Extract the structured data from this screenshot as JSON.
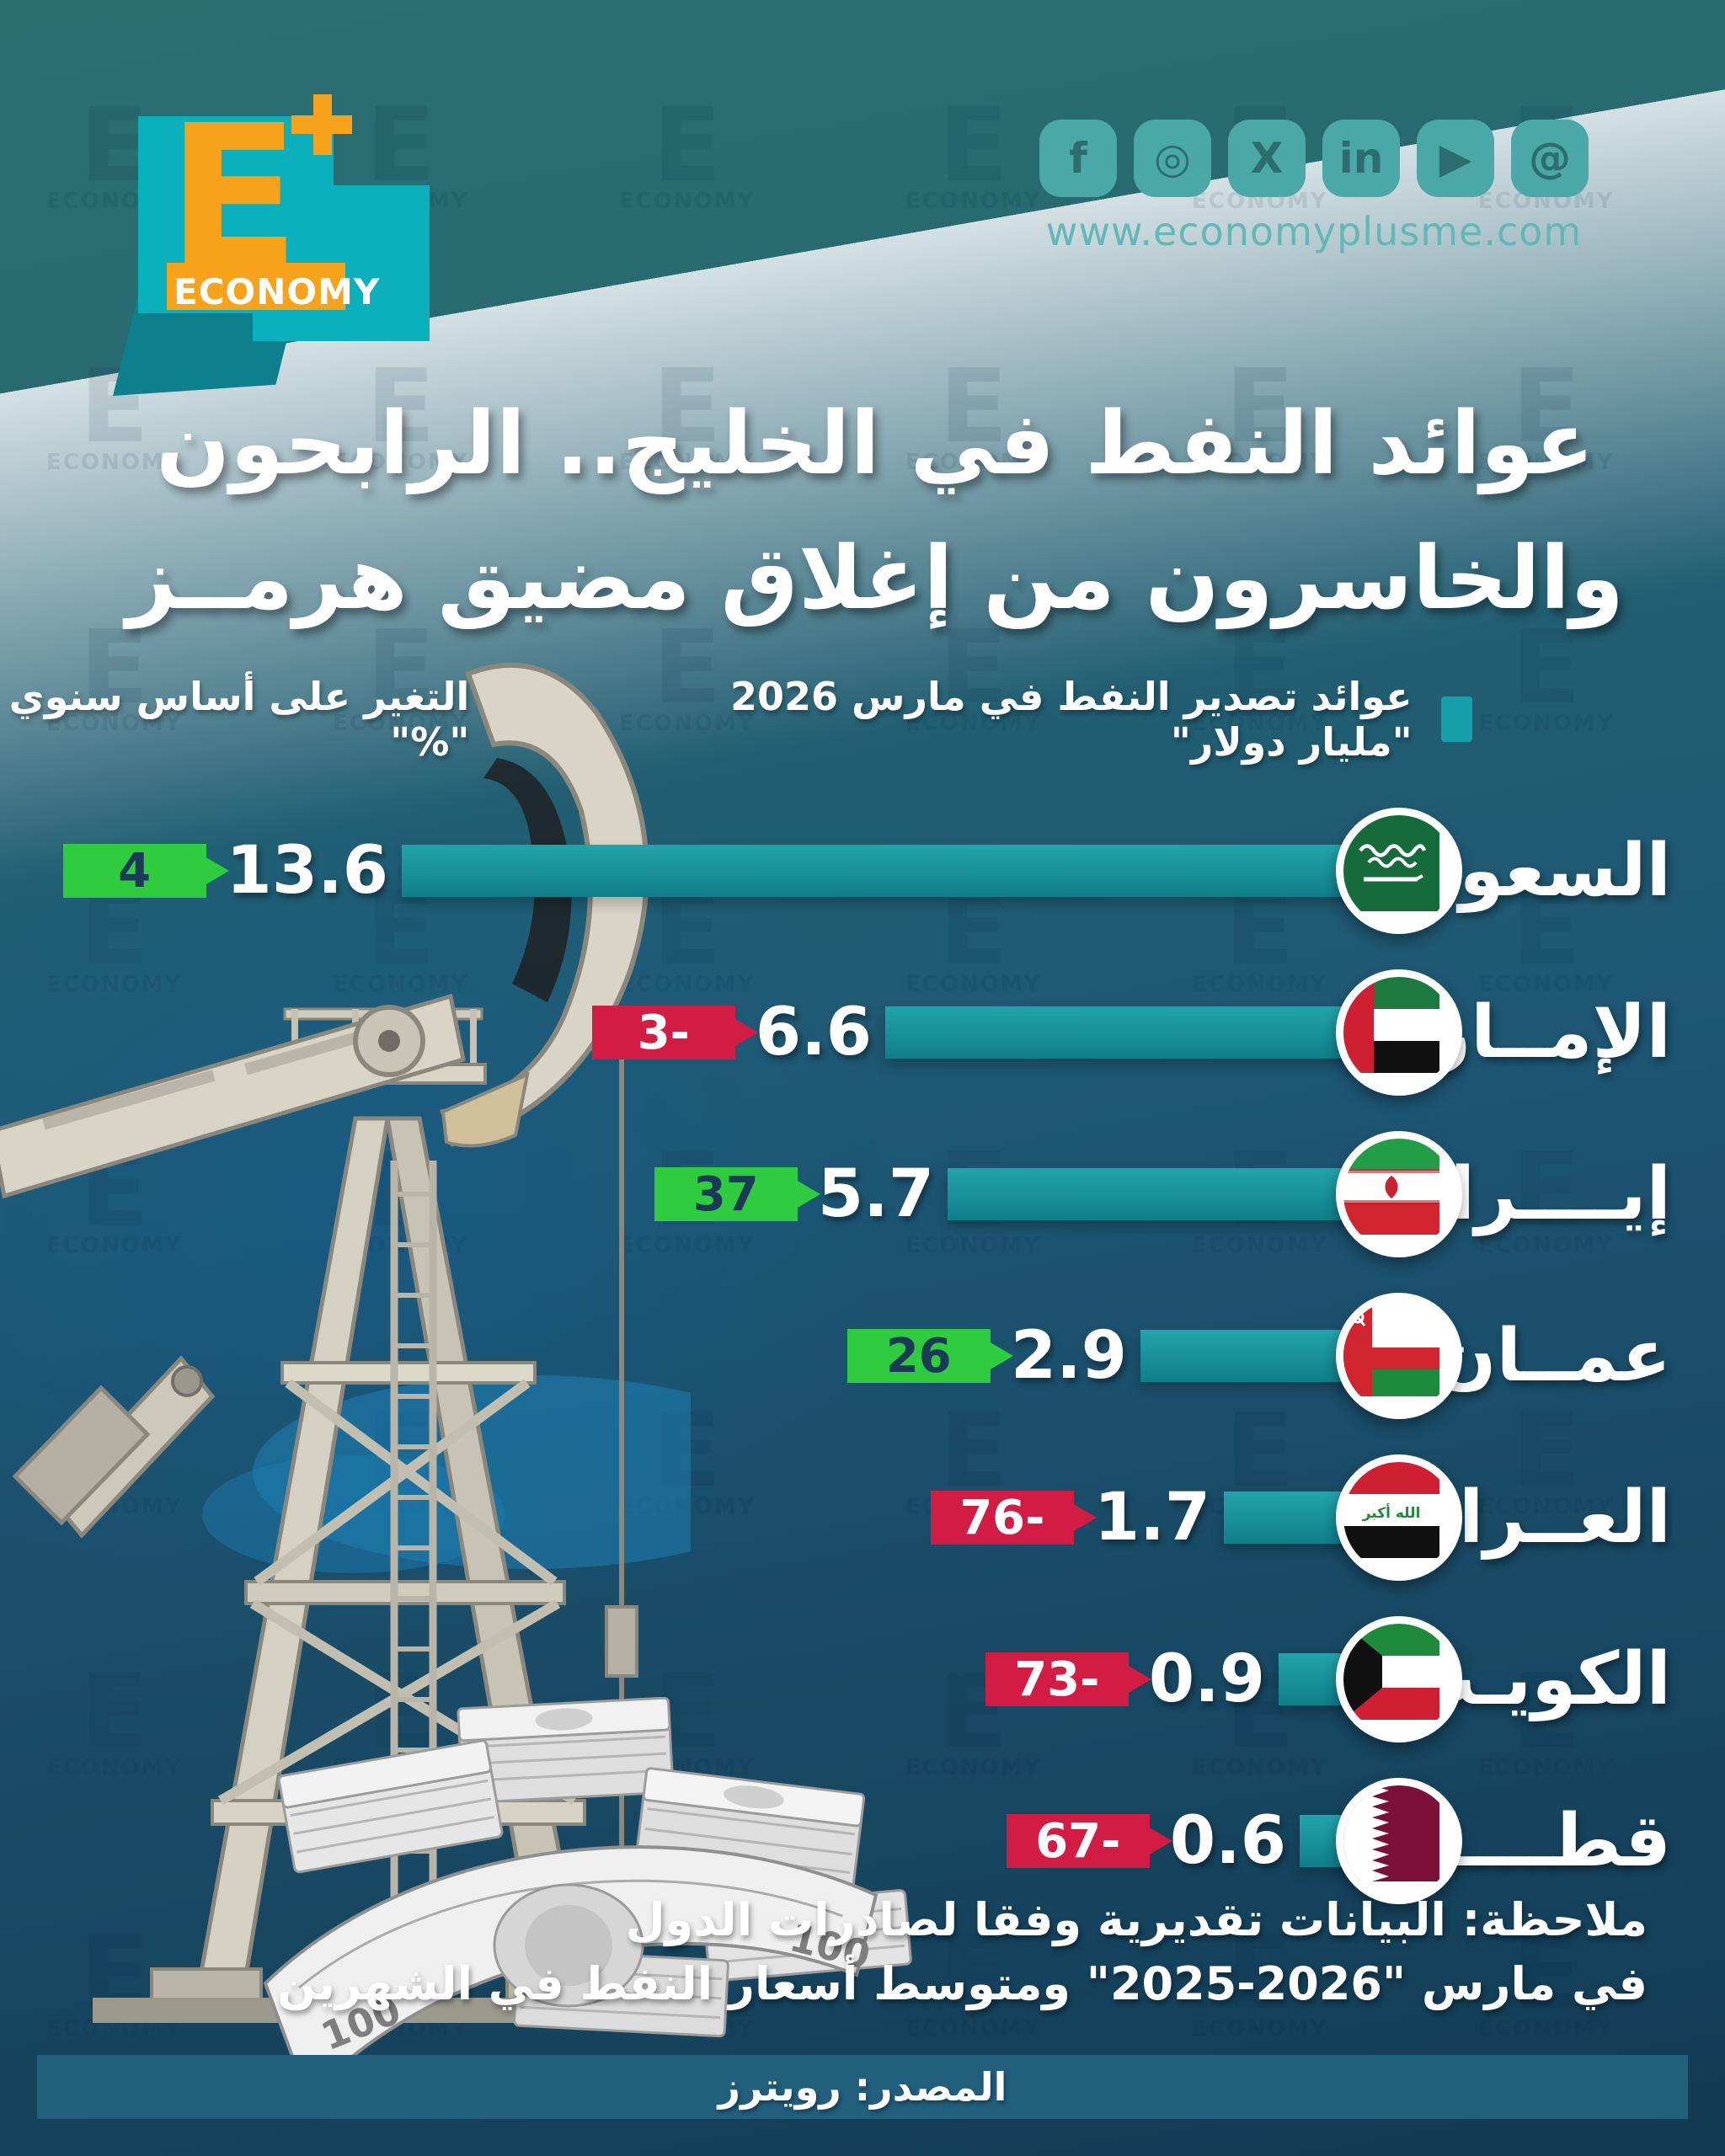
{
  "header": {
    "logo": {
      "letter": "E",
      "wordmark": "ECONOMY"
    },
    "website": "www.economyplusme.com",
    "social_icons": [
      {
        "name": "facebook",
        "glyph": "f"
      },
      {
        "name": "instagram",
        "glyph": "◎"
      },
      {
        "name": "x",
        "glyph": "X"
      },
      {
        "name": "linkedin",
        "glyph": "in"
      },
      {
        "name": "youtube",
        "glyph": "▶"
      },
      {
        "name": "threads",
        "glyph": "@"
      }
    ]
  },
  "title": {
    "line1": "عوائد النفط في الخليج.. الرابحون",
    "line2": "والخاسرون من إغلاق مضيق هرمــز"
  },
  "legend": {
    "revenue_label": "عوائد تصدير النفط في مارس 2026 \"مليار دولار\"",
    "change_label": "التغير على أساس سنوي \"%\""
  },
  "rows": [
    {
      "country": "السعودية",
      "flag": "saudi-arabia",
      "value": 13.6,
      "value_display": "13.6",
      "change": 4,
      "change_display": "4",
      "direction": "up"
    },
    {
      "country": "الإمــارات",
      "flag": "uae",
      "value": 6.6,
      "value_display": "6.6",
      "change": -3,
      "change_display": "3-",
      "direction": "down"
    },
    {
      "country": "إيــــران",
      "flag": "iran",
      "value": 5.7,
      "value_display": "5.7",
      "change": 37,
      "change_display": "37",
      "direction": "up"
    },
    {
      "country": "عمــان",
      "flag": "oman",
      "value": 2.9,
      "value_display": "2.9",
      "change": 26,
      "change_display": "26",
      "direction": "up"
    },
    {
      "country": "العــراق",
      "flag": "iraq",
      "value": 1.7,
      "value_display": "1.7",
      "change": -76,
      "change_display": "76-",
      "direction": "down"
    },
    {
      "country": "الكويـت",
      "flag": "kuwait",
      "value": 0.9,
      "value_display": "0.9",
      "change": -73,
      "change_display": "73-",
      "direction": "down"
    },
    {
      "country": "قطـــــر",
      "flag": "qatar",
      "value": 0.6,
      "value_display": "0.6",
      "change": -67,
      "change_display": "67-",
      "direction": "down"
    }
  ],
  "note": {
    "line1": "ملاحظة: البيانات تقديرية وفقا لصادرات الدول",
    "line2": "في مارس \"2026-2025\" ومتوسط أسعار النفط في الشهرين"
  },
  "source": {
    "label": "المصدر: رويترز"
  },
  "watermark": {
    "letter": "E",
    "word": "ECONOMY"
  },
  "colors": {
    "background_top": "#2c7072",
    "background_bottom": "#123a52",
    "bar": "#1b98a2",
    "positive_badge": "#2fcc40",
    "negative_badge": "#d31c44",
    "accent_teal": "#0ab1bd",
    "accent_orange": "#f6a21a"
  },
  "chart_data": {
    "type": "bar",
    "orientation": "horizontal-rtl",
    "title": "عوائد النفط في الخليج.. الرابحون والخاسرون من إغلاق مضيق هرمــز",
    "categories": [
      "السعودية",
      "الإمــارات",
      "إيــــران",
      "عمــان",
      "العــراق",
      "الكويـت",
      "قطـــــر"
    ],
    "series": [
      {
        "name": "عوائد تصدير النفط في مارس 2026 \"مليار دولار\"",
        "unit": "مليار دولار",
        "values": [
          13.6,
          6.6,
          5.7,
          2.9,
          1.7,
          0.9,
          0.6
        ]
      },
      {
        "name": "التغير على أساس سنوي \"%\"",
        "unit": "%",
        "values": [
          4,
          -3,
          37,
          26,
          -76,
          -73,
          -67
        ]
      }
    ],
    "legend_position": "top",
    "grid": false,
    "source": "المصدر: رويترز"
  }
}
